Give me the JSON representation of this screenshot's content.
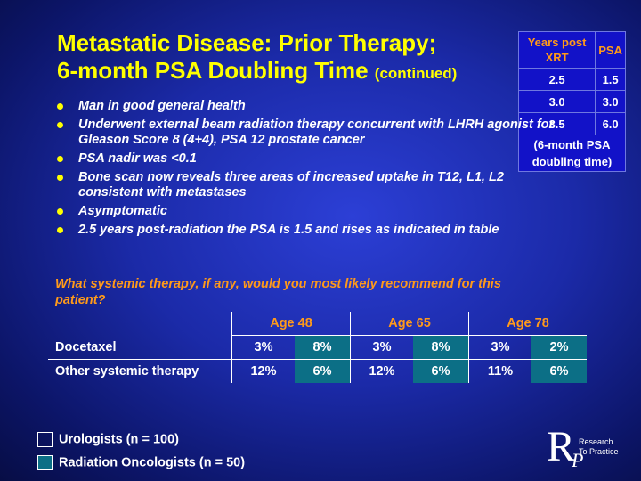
{
  "title": {
    "line1": "Metastatic Disease: Prior Therapy;",
    "line2": "6-month PSA Doubling Time",
    "suffix": "(continued)"
  },
  "psa_table": {
    "headers": [
      "Years post XRT",
      "PSA"
    ],
    "rows": [
      [
        "2.5",
        "1.5"
      ],
      [
        "3.0",
        "3.0"
      ],
      [
        "3.5",
        "6.0"
      ]
    ],
    "note": "(6-month PSA doubling time)"
  },
  "bullets": [
    "Man in good general health",
    "Underwent external beam radiation therapy concurrent with LHRH agonist for Gleason Score 8 (4+4), PSA 12 prostate cancer",
    "PSA nadir was <0.1",
    "Bone scan now reveals three areas of increased uptake in T12, L1, L2 consistent with metastases",
    "Asymptomatic",
    "2.5 years post-radiation the PSA is 1.5 and rises as indicated in table"
  ],
  "question": "What systemic therapy, if any, would you most likely recommend for this patient?",
  "results": {
    "groups": [
      "Age 48",
      "Age 65",
      "Age 78"
    ],
    "rows": [
      {
        "label": "Docetaxel",
        "values": [
          "3%",
          "8%",
          "3%",
          "8%",
          "3%",
          "2%"
        ]
      },
      {
        "label": "Other systemic therapy",
        "values": [
          "12%",
          "6%",
          "12%",
          "6%",
          "11%",
          "6%"
        ]
      }
    ]
  },
  "legend": [
    {
      "label": "Urologists  (n = 100)",
      "color": "transparent"
    },
    {
      "label": "Radiation Oncologists  (n = 50)",
      "color": "#0c6f86"
    }
  ],
  "logo": {
    "letter": "R",
    "sub_letter": "P",
    "line1": "Research",
    "line2": "To Practice"
  },
  "colors": {
    "title": "#ffff00",
    "accent": "#ff9a1a",
    "radiation_fill": "#0c6f86"
  }
}
